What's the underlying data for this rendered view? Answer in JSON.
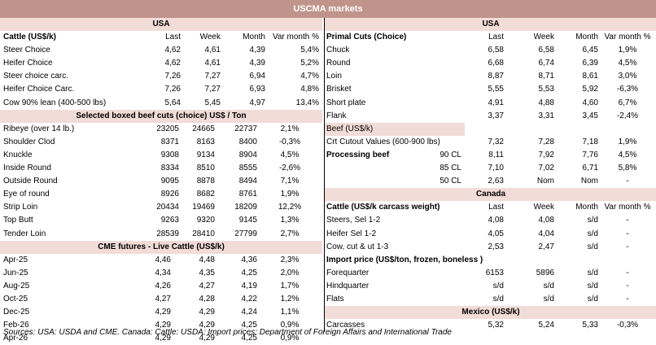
{
  "title": "USCMA markets",
  "left": {
    "usa_header": "USA",
    "cattle_header": [
      "Cattle (US$/k)",
      "Last",
      "Week",
      "Month",
      "Var month %"
    ],
    "cattle_rows": [
      [
        "Steer Choice",
        "4,62",
        "4,61",
        "4,39",
        "5,4%"
      ],
      [
        "Heifer Choice",
        "4,62",
        "4,61",
        "4,39",
        "5,2%"
      ],
      [
        "Steer choice carc.",
        "7,26",
        "7,27",
        "6,94",
        "4,7%"
      ],
      [
        "Heifer Choice Carc.",
        "7,26",
        "7,27",
        "6,93",
        "4,8%"
      ],
      [
        "Cow 90% lean (400-500 lbs)",
        "5,64",
        "5,45",
        "4,97",
        "13,4%"
      ]
    ],
    "boxed_header": "Selected boxed beef cuts (choice) US$ / Ton",
    "boxed_rows": [
      [
        "Ribeye (over 14 lb.)",
        "23205",
        "24665",
        "22737",
        "2,1%"
      ],
      [
        "Shoulder Clod",
        "8371",
        "8163",
        "8400",
        "-0,3%"
      ],
      [
        "Knuckle",
        "9308",
        "9134",
        "8904",
        "4,5%"
      ],
      [
        "Inside Round",
        "8334",
        "8510",
        "8555",
        "-2,6%"
      ],
      [
        "Outside Round",
        "9095",
        "8878",
        "8494",
        "7,1%"
      ],
      [
        "Eye of round",
        "8926",
        "8682",
        "8761",
        "1,9%"
      ],
      [
        "Strip Loin",
        "20434",
        "19469",
        "18209",
        "12,2%"
      ],
      [
        "Top Butt",
        "9263",
        "9320",
        "9145",
        "1,3%"
      ],
      [
        "Tender Loin",
        "28539",
        "28410",
        "27799",
        "2,7%"
      ]
    ],
    "futures_header": "CME futures - Live Cattle (US$/k)",
    "futures_rows": [
      [
        "Apr-25",
        "4,46",
        "4,48",
        "4,36",
        "2,3%"
      ],
      [
        "Jun-25",
        "4,34",
        "4,35",
        "4,25",
        "2,0%"
      ],
      [
        "Aug-25",
        "4,26",
        "4,27",
        "4,19",
        "1,7%"
      ],
      [
        "Oct-25",
        "4,27",
        "4,28",
        "4,22",
        "1,2%"
      ],
      [
        "Dec-25",
        "4,29",
        "4,29",
        "4,24",
        "1,1%"
      ],
      [
        "Feb-26",
        "4,29",
        "4,29",
        "4,25",
        "0,9%"
      ],
      [
        "Apr-26",
        "4,29",
        "4,29",
        "4,25",
        "0,9%"
      ]
    ]
  },
  "right": {
    "usa_header": "USA",
    "primal_header": [
      "Primal Cuts (Choice)",
      "Last",
      "Week",
      "Month",
      "Var month %"
    ],
    "primal_rows": [
      [
        "Chuck",
        "6,58",
        "6,58",
        "6,45",
        "1,9%"
      ],
      [
        "Round",
        "6,68",
        "6,74",
        "6,39",
        "4,5%"
      ],
      [
        "Loin",
        "8,87",
        "8,71",
        "8,61",
        "3,0%"
      ],
      [
        "Brisket",
        "5,55",
        "5,53",
        "5,92",
        "-6,3%"
      ],
      [
        "Short plate",
        "4,91",
        "4,88",
        "4,60",
        "6,7%"
      ],
      [
        "Flank",
        "3,37",
        "3,31",
        "3,45",
        "-2,4%"
      ]
    ],
    "beef_header": "Beef (US$/k)",
    "beef_rows": [
      [
        "Crt Cutout Values (600-900 lbs)",
        "",
        "7,32",
        "7,28",
        "7,18",
        "1,9%"
      ],
      [
        "Processing beef",
        "90 CL",
        "8,11",
        "7,92",
        "7,76",
        "4,5%"
      ],
      [
        "",
        "85 CL",
        "7,10",
        "7,02",
        "6,71",
        "5,8%"
      ],
      [
        "",
        "50 CL",
        "2,63",
        "Nom",
        "Nom",
        "-"
      ]
    ],
    "canada_header": "Canada",
    "canada_cattle_header": [
      "Cattle (US$/k carcass weight)",
      "Last",
      "Week",
      "Month",
      "Var month %"
    ],
    "canada_rows": [
      [
        "Steers, Sel 1-2",
        "4,08",
        "4,08",
        "s/d",
        "-"
      ],
      [
        "Heifer Sel 1-2",
        "4,05",
        "4,04",
        "s/d",
        "-"
      ],
      [
        "Cow, cut & ut 1-3",
        "2,53",
        "2,47",
        "s/d",
        "-"
      ]
    ],
    "import_header": "Import price (US$/ton, frozen, boneless )",
    "import_rows": [
      [
        "Forequarter",
        "6153",
        "5896",
        "s/d",
        "-"
      ],
      [
        "Hindquarter",
        "s/d",
        "s/d",
        "s/d",
        "-"
      ],
      [
        "Flats",
        "s/d",
        "s/d",
        "s/d",
        "-"
      ]
    ],
    "mexico_header": "Mexico (US$/k)",
    "mexico_rows": [
      [
        "Carcasses",
        "5,32",
        "5,24",
        "5,33",
        "-0,3%"
      ]
    ]
  },
  "footer": "Sources: USA: USDA and CME. Canada: Cattle: USDA; Import prices: Department of Foreign Affairs and International Trade",
  "colors": {
    "title_bg": "#c0948a",
    "band_bg": "#f2dcd8"
  }
}
